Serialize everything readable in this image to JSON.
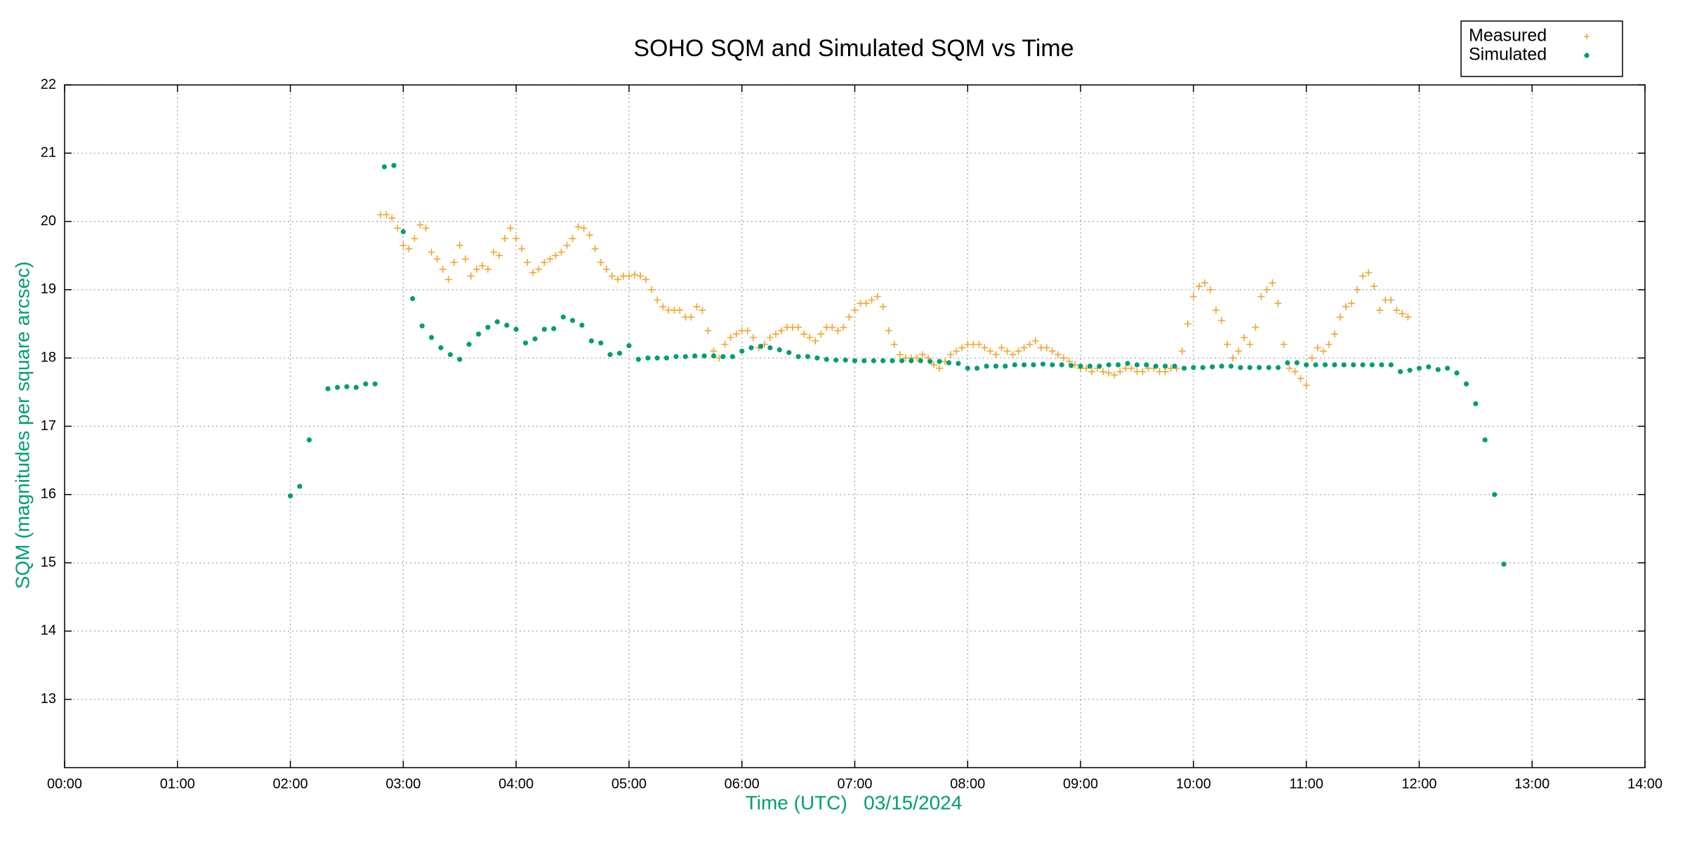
{
  "chart_data": {
    "type": "scatter",
    "title": "SOHO SQM and Simulated SQM vs Time",
    "xlabel": "Time (UTC)   03/15/2024",
    "ylabel": "SQM (magnitudes per square arcsec)",
    "xlim": [
      0,
      14
    ],
    "xticks": [
      {
        "value": 0,
        "label": "00:00"
      },
      {
        "value": 1,
        "label": "01:00"
      },
      {
        "value": 2,
        "label": "02:00"
      },
      {
        "value": 3,
        "label": "03:00"
      },
      {
        "value": 4,
        "label": "04:00"
      },
      {
        "value": 5,
        "label": "05:00"
      },
      {
        "value": 6,
        "label": "06:00"
      },
      {
        "value": 7,
        "label": "07:00"
      },
      {
        "value": 8,
        "label": "08:00"
      },
      {
        "value": 9,
        "label": "09:00"
      },
      {
        "value": 10,
        "label": "10:00"
      },
      {
        "value": 11,
        "label": "11:00"
      },
      {
        "value": 12,
        "label": "12:00"
      },
      {
        "value": 13,
        "label": "13:00"
      },
      {
        "value": 14,
        "label": "14:00"
      }
    ],
    "ylim": [
      12,
      22
    ],
    "yticks": [
      13,
      14,
      15,
      16,
      17,
      18,
      19,
      20,
      21,
      22
    ],
    "grid": true,
    "legend": "top-right",
    "series": [
      {
        "name": "Measured",
        "color": "#f2a531",
        "marker": "plus",
        "x": [
          2.8,
          2.85,
          2.9,
          2.95,
          3,
          3.05,
          3.1,
          3.15,
          3.2,
          3.25,
          3.3,
          3.35,
          3.4,
          3.45,
          3.5,
          3.55,
          3.6,
          3.65,
          3.7,
          3.75,
          3.8,
          3.85,
          3.9,
          3.95,
          4,
          4.05,
          4.1,
          4.15,
          4.2,
          4.25,
          4.3,
          4.35,
          4.4,
          4.45,
          4.5,
          4.55,
          4.6,
          4.65,
          4.7,
          4.75,
          4.8,
          4.85,
          4.9,
          4.95,
          5,
          5.05,
          5.1,
          5.15,
          5.2,
          5.25,
          5.3,
          5.35,
          5.4,
          5.45,
          5.5,
          5.55,
          5.6,
          5.65,
          5.7,
          5.75,
          5.8,
          5.85,
          5.9,
          5.95,
          6,
          6.05,
          6.1,
          6.15,
          6.2,
          6.25,
          6.3,
          6.35,
          6.4,
          6.45,
          6.5,
          6.55,
          6.6,
          6.65,
          6.7,
          6.75,
          6.8,
          6.85,
          6.9,
          6.95,
          7,
          7.05,
          7.1,
          7.15,
          7.2,
          7.25,
          7.3,
          7.35,
          7.4,
          7.45,
          7.5,
          7.55,
          7.6,
          7.65,
          7.7,
          7.75,
          7.8,
          7.85,
          7.9,
          7.95,
          8,
          8.05,
          8.1,
          8.15,
          8.2,
          8.25,
          8.3,
          8.35,
          8.4,
          8.45,
          8.5,
          8.55,
          8.6,
          8.65,
          8.7,
          8.75,
          8.8,
          8.85,
          8.9,
          8.95,
          9,
          9.05,
          9.1,
          9.15,
          9.2,
          9.25,
          9.3,
          9.35,
          9.4,
          9.45,
          9.5,
          9.55,
          9.6,
          9.65,
          9.7,
          9.75,
          9.8,
          9.85,
          9.9,
          9.95,
          10,
          10.05,
          10.1,
          10.15,
          10.2,
          10.25,
          10.3,
          10.35,
          10.4,
          10.45,
          10.5,
          10.55,
          10.6,
          10.65,
          10.7,
          10.75,
          10.8,
          10.85,
          10.9,
          10.95,
          11,
          11.05,
          11.1,
          11.15,
          11.2,
          11.25,
          11.3,
          11.35,
          11.4,
          11.45,
          11.5,
          11.55,
          11.6,
          11.65,
          11.7,
          11.75,
          11.8,
          11.85,
          11.9
        ],
        "values": [
          20.1,
          20.1,
          20.05,
          19.9,
          19.65,
          19.6,
          19.75,
          19.95,
          19.9,
          19.55,
          19.45,
          19.3,
          19.15,
          19.4,
          19.65,
          19.45,
          19.2,
          19.3,
          19.35,
          19.3,
          19.55,
          19.5,
          19.75,
          19.9,
          19.75,
          19.6,
          19.4,
          19.25,
          19.3,
          19.4,
          19.45,
          19.5,
          19.55,
          19.65,
          19.75,
          19.92,
          19.9,
          19.8,
          19.6,
          19.4,
          19.3,
          19.2,
          19.15,
          19.2,
          19.2,
          19.22,
          19.2,
          19.15,
          19.0,
          18.85,
          18.75,
          18.7,
          18.7,
          18.7,
          18.6,
          18.6,
          18.75,
          18.7,
          18.4,
          18.1,
          18.0,
          18.2,
          18.3,
          18.35,
          18.4,
          18.4,
          18.3,
          18.15,
          18.2,
          18.3,
          18.35,
          18.4,
          18.45,
          18.45,
          18.45,
          18.35,
          18.3,
          18.25,
          18.35,
          18.45,
          18.45,
          18.4,
          18.45,
          18.6,
          18.7,
          18.8,
          18.8,
          18.85,
          18.9,
          18.75,
          18.4,
          18.2,
          18.05,
          18.0,
          18.0,
          18.0,
          18.05,
          18.0,
          17.9,
          17.85,
          17.95,
          18.05,
          18.1,
          18.15,
          18.2,
          18.2,
          18.2,
          18.15,
          18.1,
          18.05,
          18.15,
          18.1,
          18.05,
          18.1,
          18.15,
          18.2,
          18.25,
          18.15,
          18.15,
          18.1,
          18.05,
          18.0,
          17.95,
          17.9,
          17.85,
          17.85,
          17.8,
          17.85,
          17.8,
          17.78,
          17.75,
          17.8,
          17.85,
          17.85,
          17.8,
          17.8,
          17.85,
          17.85,
          17.8,
          17.8,
          17.85,
          17.85,
          18.1,
          18.5,
          18.9,
          19.05,
          19.1,
          19.0,
          18.7,
          18.55,
          18.2,
          18.0,
          18.1,
          18.3,
          18.2,
          18.45,
          18.9,
          19.0,
          19.1,
          18.8,
          18.2,
          17.85,
          17.8,
          17.7,
          17.6,
          18.0,
          18.15,
          18.1,
          18.2,
          18.35,
          18.6,
          18.75,
          18.8,
          19.0,
          19.2,
          19.25,
          19.05,
          18.7,
          18.85,
          18.85,
          18.7,
          18.65,
          18.6
        ]
      },
      {
        "name": "Simulated",
        "color": "#009e73",
        "marker": "dot",
        "x": [
          2,
          2.083,
          2.167,
          2.333,
          2.417,
          2.5,
          2.583,
          2.667,
          2.75,
          2.833,
          2.917,
          3,
          3.083,
          3.167,
          3.25,
          3.333,
          3.417,
          3.5,
          3.583,
          3.667,
          3.75,
          3.833,
          3.917,
          4,
          4.083,
          4.167,
          4.25,
          4.333,
          4.417,
          4.5,
          4.583,
          4.667,
          4.75,
          4.833,
          4.917,
          5,
          5.083,
          5.167,
          5.25,
          5.333,
          5.417,
          5.5,
          5.583,
          5.667,
          5.75,
          5.833,
          5.917,
          6,
          6.083,
          6.167,
          6.25,
          6.333,
          6.417,
          6.5,
          6.583,
          6.667,
          6.75,
          6.833,
          6.917,
          7,
          7.083,
          7.167,
          7.25,
          7.333,
          7.417,
          7.5,
          7.583,
          7.667,
          7.75,
          7.833,
          7.917,
          8,
          8.083,
          8.167,
          8.25,
          8.333,
          8.417,
          8.5,
          8.583,
          8.667,
          8.75,
          8.833,
          8.917,
          9,
          9.083,
          9.167,
          9.25,
          9.333,
          9.417,
          9.5,
          9.583,
          9.667,
          9.75,
          9.833,
          9.917,
          10,
          10.083,
          10.167,
          10.25,
          10.333,
          10.417,
          10.5,
          10.583,
          10.667,
          10.75,
          10.833,
          10.917,
          11,
          11.083,
          11.167,
          11.25,
          11.333,
          11.417,
          11.5,
          11.583,
          11.667,
          11.75,
          11.833,
          11.917,
          12,
          12.083,
          12.167,
          12.25,
          12.333,
          12.417,
          12.5,
          12.583,
          12.667,
          12.75
        ],
        "values": [
          15.98,
          16.12,
          16.8,
          17.55,
          17.57,
          17.58,
          17.57,
          17.62,
          17.62,
          20.8,
          20.82,
          19.85,
          18.87,
          18.47,
          18.3,
          18.15,
          18.05,
          17.98,
          18.2,
          18.35,
          18.45,
          18.53,
          18.48,
          18.42,
          18.22,
          18.28,
          18.42,
          18.43,
          18.6,
          18.55,
          18.48,
          18.25,
          18.22,
          18.05,
          18.07,
          18.18,
          17.98,
          18.0,
          18.0,
          18.0,
          18.02,
          18.02,
          18.03,
          18.03,
          18.03,
          18.02,
          18.02,
          18.1,
          18.15,
          18.17,
          18.15,
          18.12,
          18.08,
          18.02,
          18.02,
          18.0,
          17.98,
          17.97,
          17.97,
          17.96,
          17.96,
          17.96,
          17.96,
          17.96,
          17.96,
          17.96,
          17.96,
          17.95,
          17.95,
          17.93,
          17.92,
          17.85,
          17.85,
          17.88,
          17.88,
          17.88,
          17.9,
          17.9,
          17.9,
          17.91,
          17.9,
          17.9,
          17.89,
          17.88,
          17.88,
          17.88,
          17.9,
          17.9,
          17.92,
          17.9,
          17.9,
          17.88,
          17.88,
          17.88,
          17.85,
          17.86,
          17.86,
          17.87,
          17.88,
          17.88,
          17.86,
          17.86,
          17.86,
          17.86,
          17.86,
          17.93,
          17.93,
          17.9,
          17.9,
          17.9,
          17.9,
          17.9,
          17.9,
          17.9,
          17.9,
          17.9,
          17.9,
          17.8,
          17.82,
          17.85,
          17.87,
          17.83,
          17.85,
          17.78,
          17.62,
          17.33,
          16.8,
          16.0,
          14.98
        ]
      }
    ]
  }
}
